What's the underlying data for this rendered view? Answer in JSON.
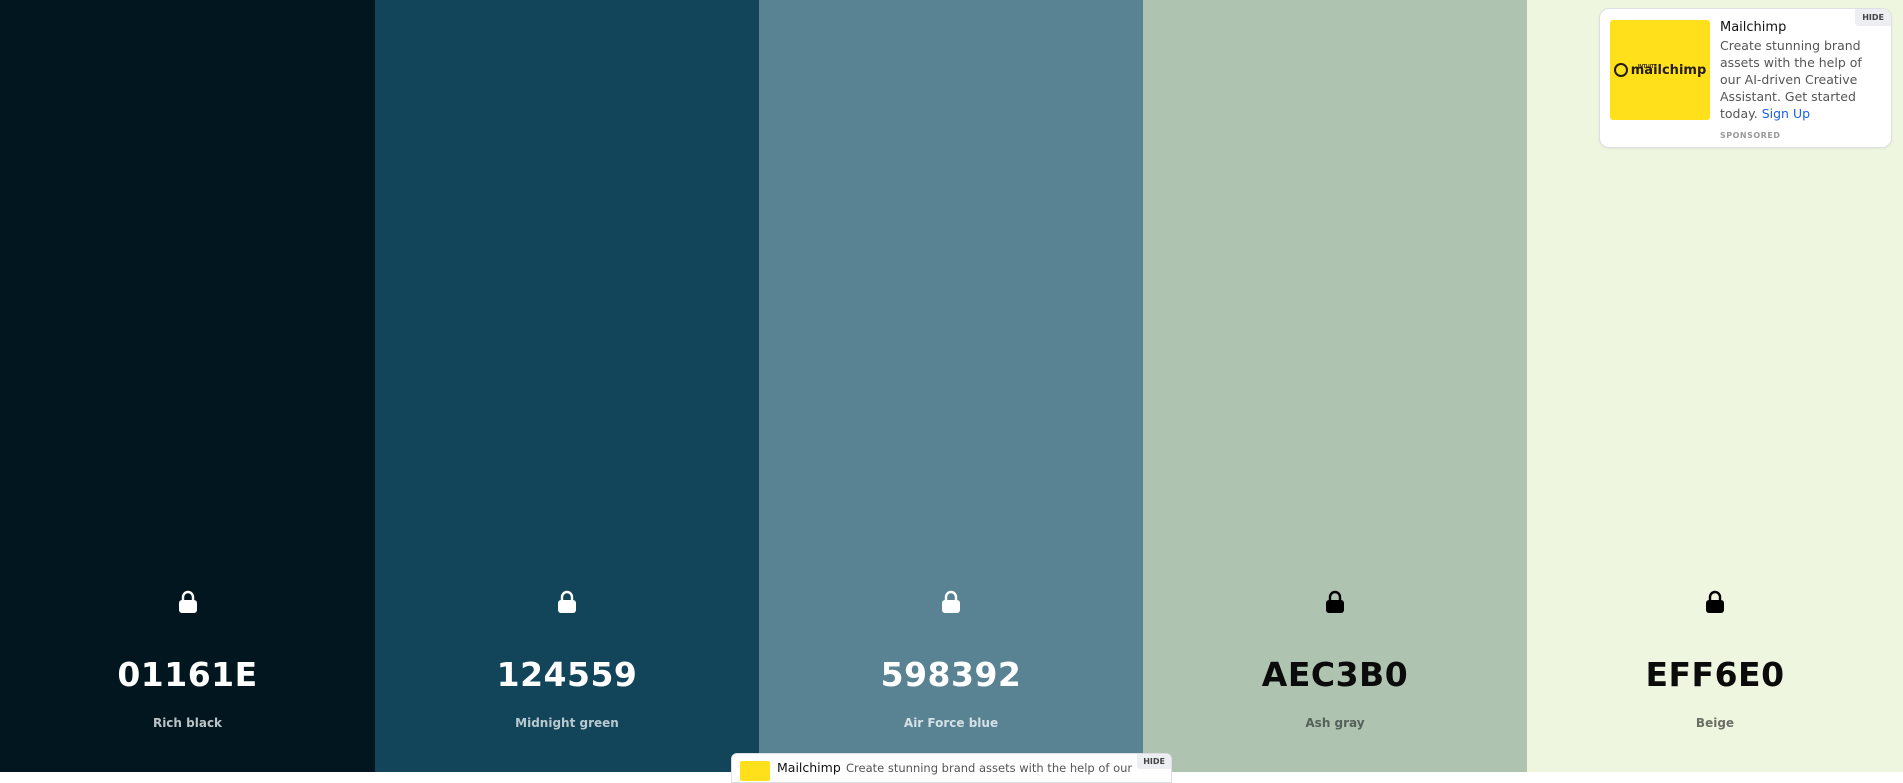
{
  "palette": [
    {
      "hex": "01161E",
      "name": "Rich black",
      "bg": "#01161e",
      "text": "#ffffff",
      "name_color": "#b9c3c6",
      "lock_color": "#ffffff",
      "width": 375
    },
    {
      "hex": "124559",
      "name": "Midnight green",
      "bg": "#124559",
      "text": "#ffffff",
      "name_color": "#b8c8cf",
      "lock_color": "#ffffff",
      "width": 384
    },
    {
      "hex": "598392",
      "name": "Air Force blue",
      "bg": "#598392",
      "text": "#ffffff",
      "name_color": "#d3e0e5",
      "lock_color": "#ffffff",
      "width": 384
    },
    {
      "hex": "AEC3B0",
      "name": "Ash gray",
      "bg": "#aec3b0",
      "text": "#0b0b0b",
      "name_color": "#55625a",
      "lock_color": "#000000",
      "width": 384
    },
    {
      "hex": "EFF6E0",
      "name": "Beige",
      "bg": "#eff6e0",
      "text": "#0b0b0b",
      "name_color": "#6b7064",
      "lock_color": "#000000",
      "width": 376
    }
  ],
  "ad": {
    "brand_small": "INTUIT",
    "brand": "mailchimp",
    "title": "Mailchimp",
    "body": "Create stunning brand assets with the help of our AI-driven Creative Assistant. Get started today.",
    "cta": "Sign Up",
    "sponsored": "SPONSORED",
    "hide": "HIDE"
  },
  "ad_bar": {
    "title": "Mailchimp",
    "text": "Create stunning brand assets with the help of our",
    "hide": "HIDE"
  }
}
